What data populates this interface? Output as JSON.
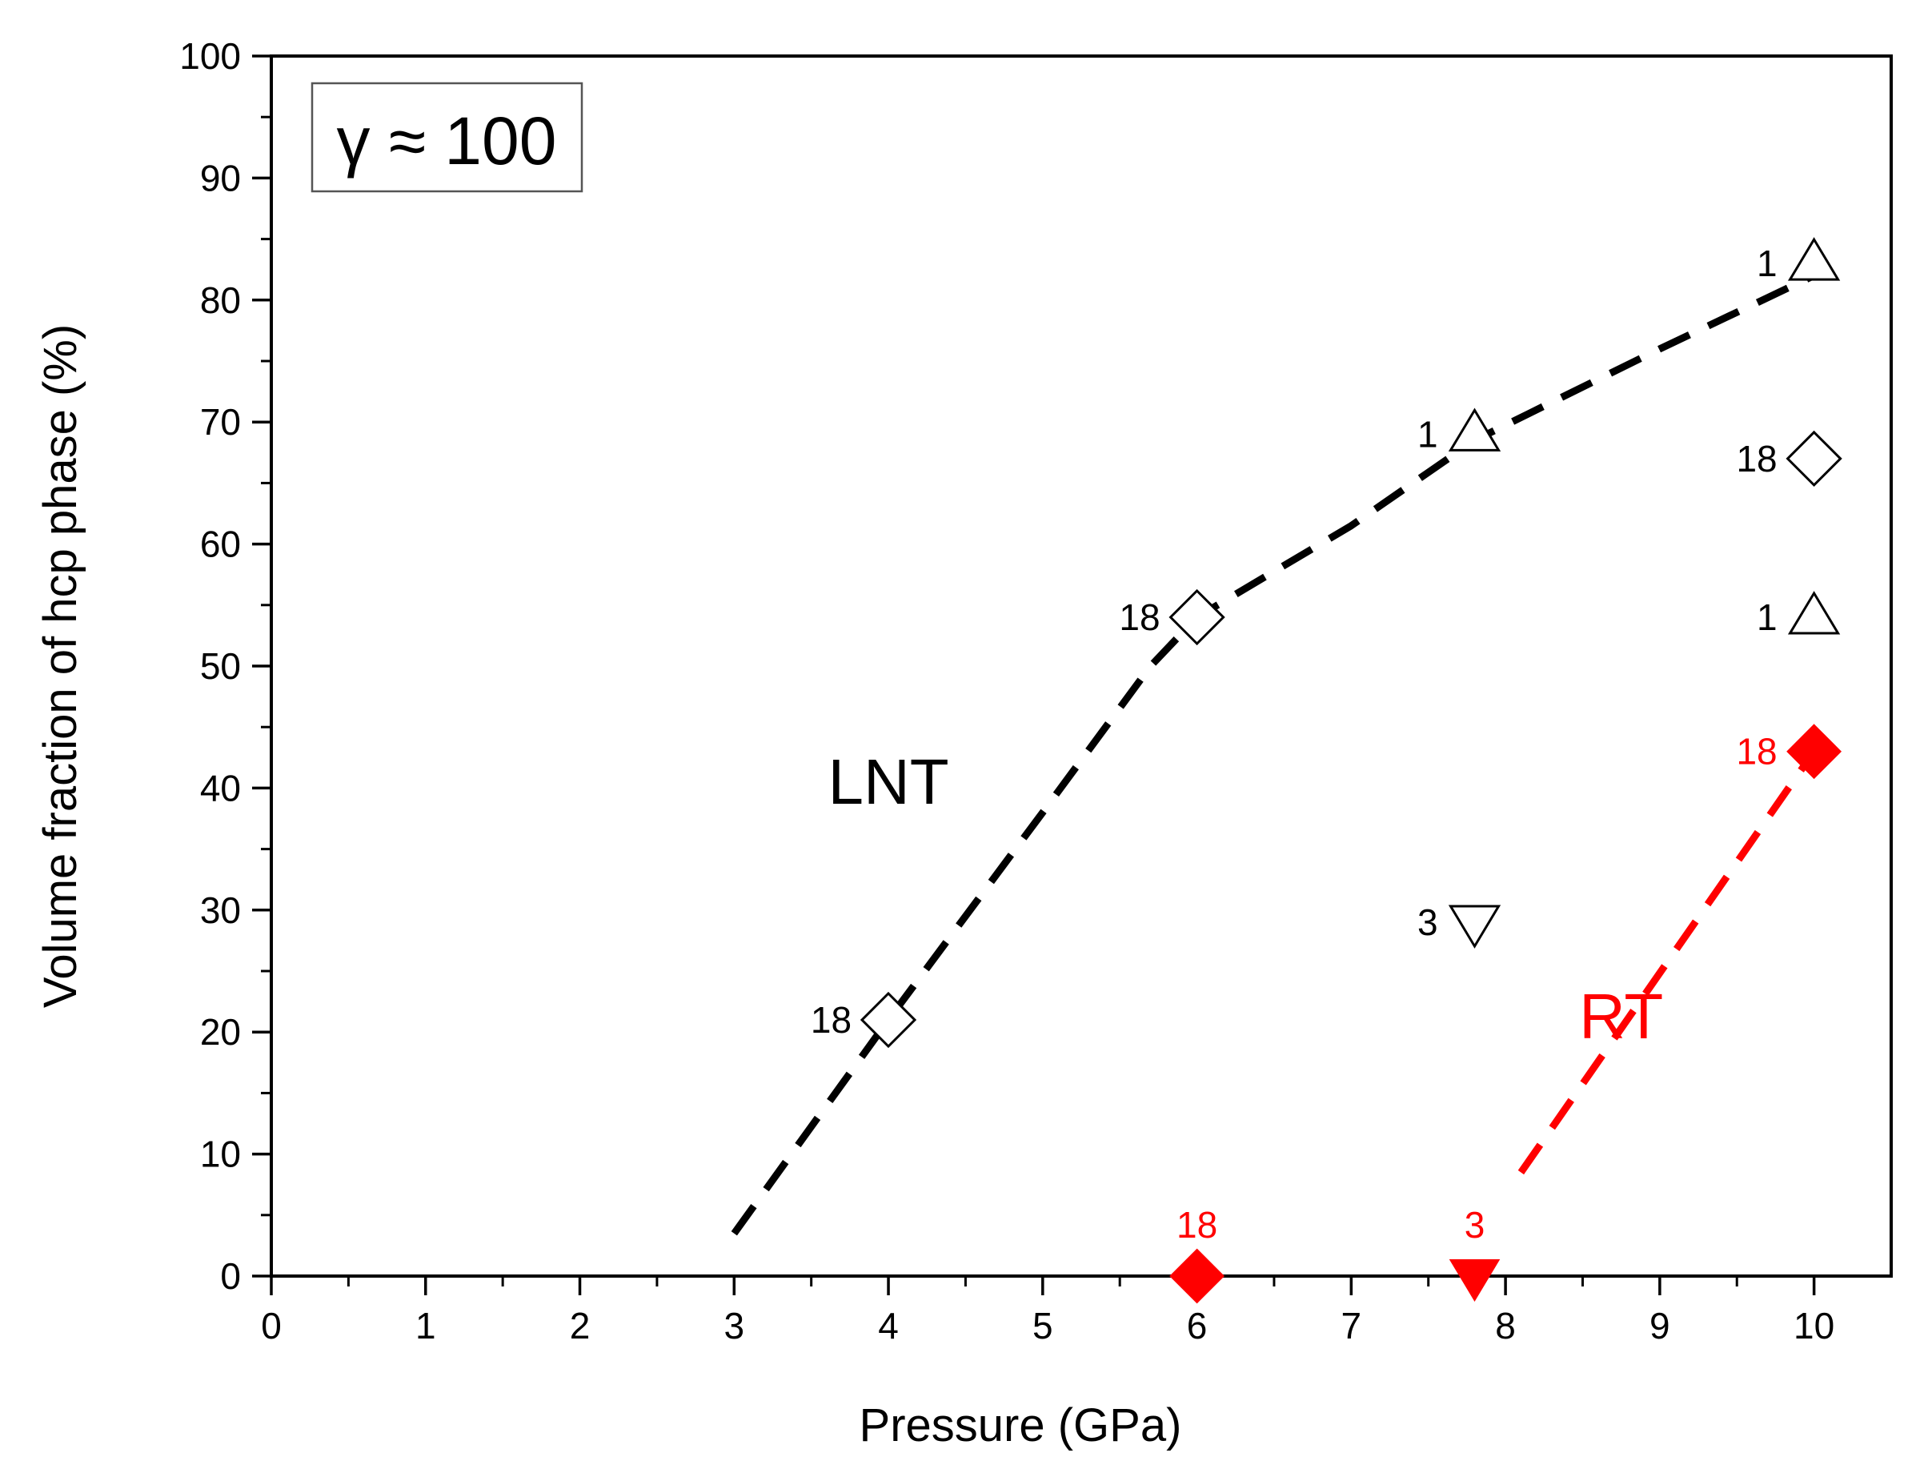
{
  "chart_data": {
    "type": "scatter",
    "xlabel": "Pressure (GPa)",
    "ylabel": "Volume fraction of hcp phase (%)",
    "xlim": [
      0,
      10.5
    ],
    "ylim": [
      0,
      100
    ],
    "x_ticks": [
      0,
      1,
      2,
      3,
      4,
      5,
      6,
      7,
      8,
      9,
      10
    ],
    "y_ticks": [
      0,
      10,
      20,
      30,
      40,
      50,
      60,
      70,
      80,
      90,
      100
    ],
    "annotation_box": "γ ≈ 100",
    "colors": {
      "LNT": "#000000",
      "RT": "#ff0000"
    },
    "series": [
      {
        "name": "LNT",
        "label": "LNT",
        "color": "#000000",
        "points": [
          {
            "x": 4.0,
            "y": 21,
            "marker": "diamond-open",
            "label": "18"
          },
          {
            "x": 6.0,
            "y": 54,
            "marker": "diamond-open",
            "label": "18"
          },
          {
            "x": 7.8,
            "y": 69,
            "marker": "triangle-up-open",
            "label": "1"
          },
          {
            "x": 7.8,
            "y": 29,
            "marker": "triangle-down-open",
            "label": "3"
          },
          {
            "x": 10.0,
            "y": 83,
            "marker": "triangle-up-open",
            "label": "1"
          },
          {
            "x": 10.0,
            "y": 67,
            "marker": "diamond-open",
            "label": "18"
          },
          {
            "x": 10.0,
            "y": 54,
            "marker": "triangle-up-open",
            "label": "1"
          }
        ],
        "trend_line": [
          [
            3.0,
            3.5
          ],
          [
            4.0,
            21
          ],
          [
            5.0,
            38
          ],
          [
            5.7,
            50
          ],
          [
            6.0,
            54
          ],
          [
            7.0,
            61.5
          ],
          [
            7.8,
            68.5
          ],
          [
            9.0,
            76
          ],
          [
            10.0,
            82
          ]
        ]
      },
      {
        "name": "RT",
        "label": "RT",
        "color": "#ff0000",
        "points": [
          {
            "x": 6.0,
            "y": 0,
            "marker": "diamond-filled",
            "label": "18"
          },
          {
            "x": 7.8,
            "y": 0,
            "marker": "triangle-down-filled",
            "label": "3"
          },
          {
            "x": 10.0,
            "y": 43,
            "marker": "diamond-filled",
            "label": "18"
          }
        ],
        "trend_line": [
          [
            8.1,
            8.5
          ],
          [
            10.0,
            43
          ]
        ]
      }
    ]
  }
}
